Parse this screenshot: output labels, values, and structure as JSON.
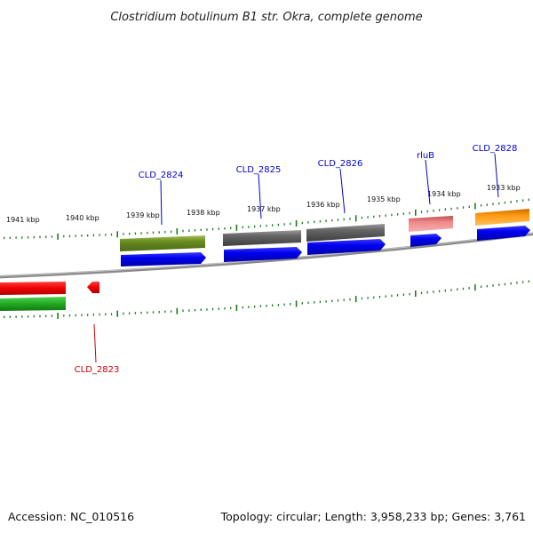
{
  "title": "Clostridium botulinum B1 str. Okra, complete genome",
  "footer": {
    "accession": "Accession: NC_010516",
    "topology": "Topology: circular; Length: 3,958,233 bp; Genes: 3,761"
  },
  "scale_labels": [
    "1941 kbp",
    "1940 kbp",
    "1939 kbp",
    "1938 kbp",
    "1937 kbp",
    "1936 kbp",
    "1935 kbp",
    "1934 kbp",
    "1933 kbp"
  ],
  "gene_labels": [
    {
      "text": "CLD_2824",
      "color": "#0000cc"
    },
    {
      "text": "CLD_2825",
      "color": "#0000cc"
    },
    {
      "text": "CLD_2826",
      "color": "#0000cc"
    },
    {
      "text": "rluB",
      "color": "#0000cc"
    },
    {
      "text": "CLD_2828",
      "color": "#0000cc"
    },
    {
      "text": "CLD_2823",
      "color": "#cc0000"
    }
  ],
  "colors": {
    "backbone": "#888888",
    "tick": "#1a7a1a",
    "cds_blue": "#0000ee",
    "olive": "#6b8e23",
    "gray_gene": "#5a5a5a",
    "pink_gene": "#e87878",
    "orange_gene": "#ff8c00",
    "red_gene": "#ee0000",
    "green_gene": "#22aa22"
  }
}
